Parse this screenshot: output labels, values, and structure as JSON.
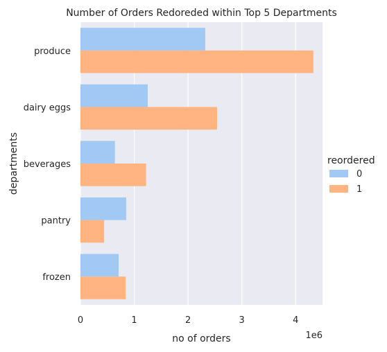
{
  "chart_data": {
    "type": "bar",
    "orientation": "horizontal",
    "title": "Number of Orders Redoreded within Top 5 Departments",
    "xlabel": "no of orders",
    "ylabel": "departments",
    "x_scale_label": "1e6",
    "xlim": [
      0,
      4.5
    ],
    "x_ticks": [
      {
        "value": 0,
        "label": "0"
      },
      {
        "value": 1,
        "label": "1"
      },
      {
        "value": 2,
        "label": "2"
      },
      {
        "value": 3,
        "label": "3"
      },
      {
        "value": 4,
        "label": "4"
      }
    ],
    "categories": [
      "produce",
      "dairy eggs",
      "beverages",
      "pantry",
      "frozen"
    ],
    "series": [
      {
        "name": "0",
        "color": "#a1c9f4",
        "values": [
          2.32,
          1.25,
          0.64,
          0.85,
          0.71
        ]
      },
      {
        "name": "1",
        "color": "#ffb482",
        "values": [
          4.33,
          2.54,
          1.22,
          0.44,
          0.84
        ]
      }
    ],
    "grid": true,
    "background_color": "#eaeaf2",
    "legend": {
      "title": "reordered",
      "placement": "right"
    }
  }
}
